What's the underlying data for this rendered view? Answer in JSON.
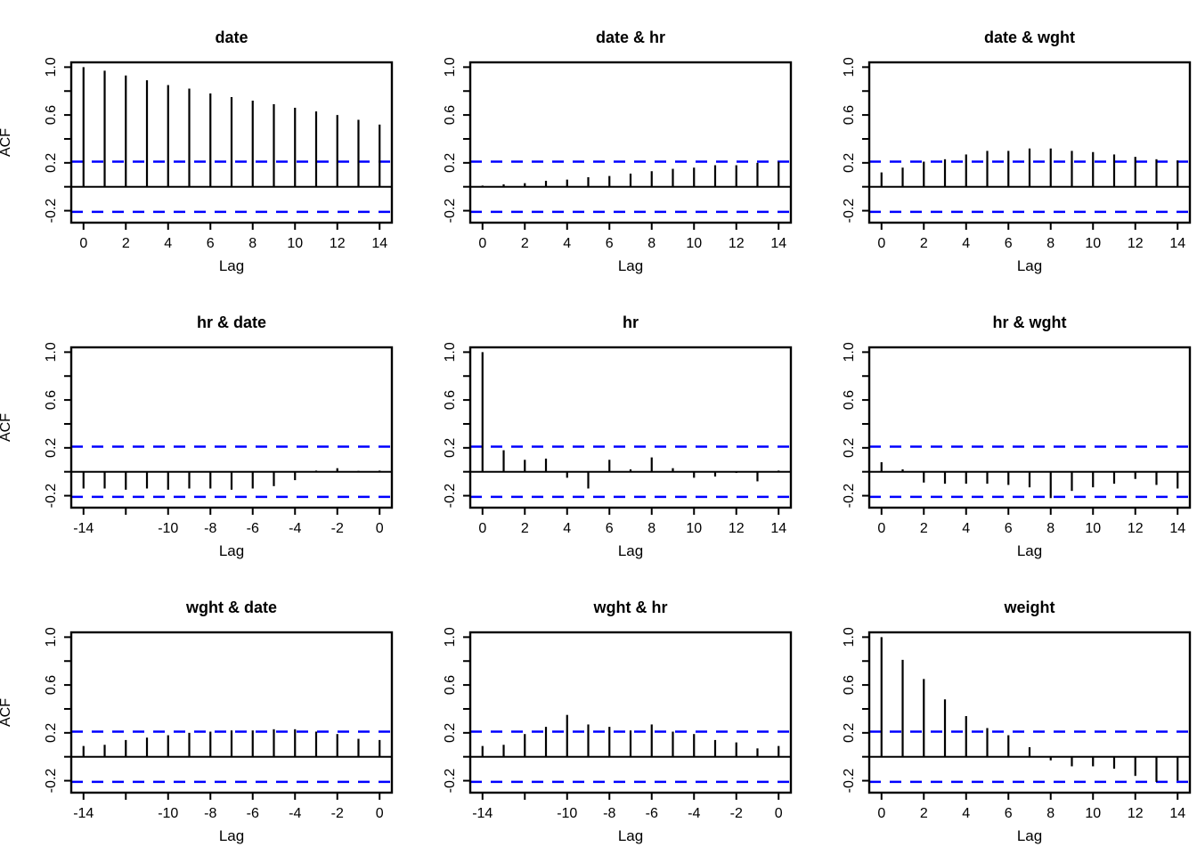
{
  "figure": {
    "type": "acf-matrix",
    "rows": 3,
    "cols": 3,
    "background": "#ffffff"
  },
  "chart_data": {
    "type": "bar",
    "subtype": "autocorrelation-grid",
    "xlabel": "Lag",
    "ylabel": "ACF",
    "ylim": [
      -0.3,
      1.04
    ],
    "yticks": [
      -0.2,
      0,
      0.2,
      0.4,
      0.6,
      0.8,
      1.0
    ],
    "ytick_labels": [
      "-0.2",
      "",
      "0.2",
      "",
      "0.6",
      "",
      "1.0"
    ],
    "confidence_band": 0.21,
    "confidence_line_color": "#0000ff",
    "bar_color": "#000000",
    "grid": false,
    "legend": "none",
    "panels": [
      {
        "title": "date",
        "lag_start": 0,
        "lags": [
          0,
          1,
          2,
          3,
          4,
          5,
          6,
          7,
          8,
          9,
          10,
          11,
          12,
          13,
          14
        ],
        "values": [
          1.0,
          0.97,
          0.93,
          0.89,
          0.85,
          0.82,
          0.78,
          0.75,
          0.72,
          0.69,
          0.66,
          0.63,
          0.6,
          0.56,
          0.52
        ],
        "xticks": [
          0,
          2,
          4,
          6,
          8,
          10,
          12,
          14
        ],
        "xtick_labels": [
          "0",
          "2",
          "4",
          "6",
          "8",
          "10",
          "12",
          "14"
        ],
        "show_ylabel": true
      },
      {
        "title": "date & hr",
        "lag_start": 0,
        "lags": [
          0,
          1,
          2,
          3,
          4,
          5,
          6,
          7,
          8,
          9,
          10,
          11,
          12,
          13,
          14
        ],
        "values": [
          0.01,
          0.02,
          0.03,
          0.05,
          0.06,
          0.08,
          0.09,
          0.11,
          0.13,
          0.15,
          0.16,
          0.18,
          0.18,
          0.2,
          0.21
        ],
        "xticks": [
          0,
          2,
          4,
          6,
          8,
          10,
          12,
          14
        ],
        "xtick_labels": [
          "0",
          "2",
          "4",
          "6",
          "8",
          "10",
          "12",
          "14"
        ],
        "show_ylabel": false
      },
      {
        "title": "date & wght",
        "lag_start": 0,
        "lags": [
          0,
          1,
          2,
          3,
          4,
          5,
          6,
          7,
          8,
          9,
          10,
          11,
          12,
          13,
          14
        ],
        "values": [
          0.12,
          0.16,
          0.21,
          0.23,
          0.27,
          0.3,
          0.3,
          0.32,
          0.32,
          0.3,
          0.29,
          0.27,
          0.25,
          0.23,
          0.22
        ],
        "xticks": [
          0,
          2,
          4,
          6,
          8,
          10,
          12,
          14
        ],
        "xtick_labels": [
          "0",
          "2",
          "4",
          "6",
          "8",
          "10",
          "12",
          "14"
        ],
        "show_ylabel": false
      },
      {
        "title": "hr & date",
        "lag_start": -14,
        "lags": [
          -14,
          -13,
          -12,
          -11,
          -10,
          -9,
          -8,
          -7,
          -6,
          -5,
          -4,
          -3,
          -2,
          -1,
          0
        ],
        "values": [
          -0.14,
          -0.14,
          -0.15,
          -0.14,
          -0.15,
          -0.14,
          -0.14,
          -0.15,
          -0.14,
          -0.12,
          -0.07,
          0.01,
          0.03,
          0.0,
          0.01
        ],
        "xticks": [
          -14,
          -12,
          -10,
          -8,
          -6,
          -4,
          -2,
          0
        ],
        "xtick_labels": [
          "-14",
          "",
          "-10",
          "-8",
          "-6",
          "-4",
          "-2",
          "0"
        ],
        "show_ylabel": true
      },
      {
        "title": "hr",
        "lag_start": 0,
        "lags": [
          0,
          1,
          2,
          3,
          4,
          5,
          6,
          7,
          8,
          9,
          10,
          11,
          12,
          13,
          14
        ],
        "values": [
          1.0,
          0.18,
          0.1,
          0.11,
          -0.05,
          -0.14,
          0.1,
          0.02,
          0.12,
          0.03,
          -0.05,
          -0.04,
          -0.01,
          -0.08,
          0.01
        ],
        "xticks": [
          0,
          2,
          4,
          6,
          8,
          10,
          12,
          14
        ],
        "xtick_labels": [
          "0",
          "2",
          "4",
          "6",
          "8",
          "10",
          "12",
          "14"
        ],
        "show_ylabel": false
      },
      {
        "title": "hr & wght",
        "lag_start": 0,
        "lags": [
          0,
          1,
          2,
          3,
          4,
          5,
          6,
          7,
          8,
          9,
          10,
          11,
          12,
          13,
          14
        ],
        "values": [
          0.08,
          0.02,
          -0.09,
          -0.1,
          -0.1,
          -0.1,
          -0.11,
          -0.13,
          -0.22,
          -0.16,
          -0.13,
          -0.1,
          -0.06,
          -0.11,
          -0.14
        ],
        "xticks": [
          0,
          2,
          4,
          6,
          8,
          10,
          12,
          14
        ],
        "xtick_labels": [
          "0",
          "2",
          "4",
          "6",
          "8",
          "10",
          "12",
          "14"
        ],
        "show_ylabel": false
      },
      {
        "title": "wght & date",
        "lag_start": -14,
        "lags": [
          -14,
          -13,
          -12,
          -11,
          -10,
          -9,
          -8,
          -7,
          -6,
          -5,
          -4,
          -3,
          -2,
          -1,
          0
        ],
        "values": [
          0.09,
          0.1,
          0.14,
          0.16,
          0.18,
          0.2,
          0.21,
          0.22,
          0.22,
          0.23,
          0.23,
          0.21,
          0.19,
          0.15,
          0.14
        ],
        "xticks": [
          -14,
          -12,
          -10,
          -8,
          -6,
          -4,
          -2,
          0
        ],
        "xtick_labels": [
          "-14",
          "",
          "-10",
          "-8",
          "-6",
          "-4",
          "-2",
          "0"
        ],
        "show_ylabel": true
      },
      {
        "title": "wght & hr",
        "lag_start": -14,
        "lags": [
          -14,
          -13,
          -12,
          -11,
          -10,
          -9,
          -8,
          -7,
          -6,
          -5,
          -4,
          -3,
          -2,
          -1,
          0
        ],
        "values": [
          0.09,
          0.1,
          0.19,
          0.25,
          0.35,
          0.27,
          0.25,
          0.22,
          0.27,
          0.21,
          0.19,
          0.14,
          0.12,
          0.07,
          0.09
        ],
        "xticks": [
          -14,
          -12,
          -10,
          -8,
          -6,
          -4,
          -2,
          0
        ],
        "xtick_labels": [
          "-14",
          "",
          "-10",
          "-8",
          "-6",
          "-4",
          "-2",
          "0"
        ],
        "show_ylabel": false
      },
      {
        "title": "weight",
        "lag_start": 0,
        "lags": [
          0,
          1,
          2,
          3,
          4,
          5,
          6,
          7,
          8,
          9,
          10,
          11,
          12,
          13,
          14
        ],
        "values": [
          1.0,
          0.81,
          0.65,
          0.48,
          0.34,
          0.24,
          0.18,
          0.08,
          -0.03,
          -0.08,
          -0.08,
          -0.1,
          -0.16,
          -0.21,
          -0.2
        ],
        "xticks": [
          0,
          2,
          4,
          6,
          8,
          10,
          12,
          14
        ],
        "xtick_labels": [
          "0",
          "2",
          "4",
          "6",
          "8",
          "10",
          "12",
          "14"
        ],
        "show_ylabel": false
      }
    ]
  }
}
